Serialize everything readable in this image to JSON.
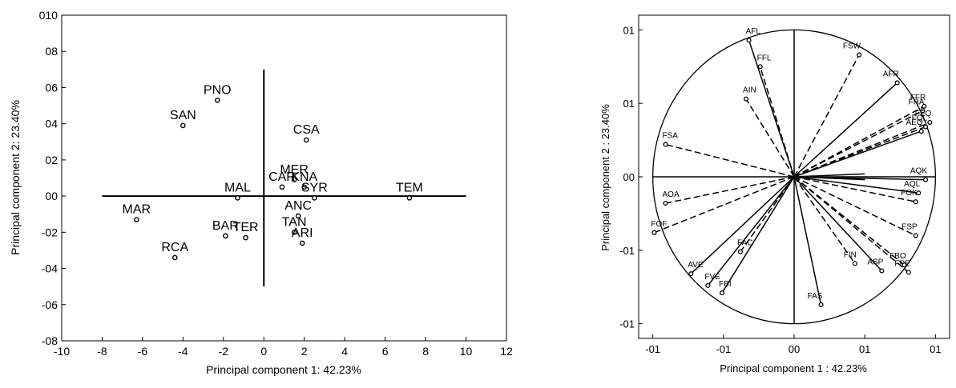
{
  "chart_data": [
    {
      "type": "scatter",
      "xlabel": "Principal component 1: 42.23%",
      "ylabel": "Principal component 2: 23.40%",
      "xlim": [
        -10,
        12
      ],
      "ylim": [
        -8,
        10
      ],
      "xticks": [
        -10,
        -8,
        -6,
        -4,
        -2,
        0,
        2,
        4,
        6,
        8,
        10,
        12
      ],
      "xtick_labels": [
        "-10",
        "-8",
        "-6",
        "-4",
        "-2",
        "0",
        "2",
        "4",
        "6",
        "8",
        "10",
        "12"
      ],
      "yticks": [
        -8,
        -6,
        -4,
        -2,
        0,
        2,
        4,
        6,
        8,
        10
      ],
      "ytick_labels": [
        "-08",
        "-06",
        "-04",
        "-02",
        "00",
        "02",
        "04",
        "06",
        "08",
        "010"
      ],
      "grid": false,
      "axis_lines": {
        "horizontal": [
          -8,
          10
        ],
        "vertical": [
          -5,
          7
        ]
      },
      "points": [
        {
          "label": "PNO",
          "x": -2.3,
          "y": 5.3
        },
        {
          "label": "SAN",
          "x": -4.0,
          "y": 3.9
        },
        {
          "label": "CSA",
          "x": 2.1,
          "y": 3.1
        },
        {
          "label": "MER",
          "x": 1.5,
          "y": 0.9
        },
        {
          "label": "CAR",
          "x": 0.9,
          "y": 0.5
        },
        {
          "label": "KNA",
          "x": 2.0,
          "y": 0.5
        },
        {
          "label": "SYR",
          "x": 2.5,
          "y": -0.1
        },
        {
          "label": "MAL",
          "x": -1.3,
          "y": -0.1
        },
        {
          "label": "TEM",
          "x": 7.2,
          "y": -0.1
        },
        {
          "label": "MAR",
          "x": -6.3,
          "y": -1.3
        },
        {
          "label": "ANC",
          "x": 1.7,
          "y": -1.1
        },
        {
          "label": "BAR",
          "x": -1.9,
          "y": -2.2
        },
        {
          "label": "TER",
          "x": -0.9,
          "y": -2.3
        },
        {
          "label": "TAN",
          "x": 1.5,
          "y": -2.0
        },
        {
          "label": "ARI",
          "x": 1.9,
          "y": -2.6
        },
        {
          "label": "RCA",
          "x": -4.4,
          "y": -3.4
        }
      ]
    },
    {
      "type": "scatter",
      "xlabel": "Principal component 1 : 42.23%",
      "ylabel": "Principal component 2 : 23.40%",
      "xlim": [
        -1.1,
        1.1
      ],
      "ylim": [
        -1.1,
        1.1
      ],
      "xticks": [
        -1,
        -0.5,
        0,
        0.5,
        1
      ],
      "xtick_labels": [
        "-01",
        "-01",
        "00",
        "01",
        "01"
      ],
      "yticks": [
        -1,
        -0.5,
        0,
        0.5,
        1
      ],
      "ytick_labels": [
        "-01",
        "-01",
        "00",
        "01",
        "01"
      ],
      "grid": false,
      "unit_circle": true,
      "vectors": [
        {
          "label": "AFL",
          "x": -0.32,
          "y": 0.93,
          "style": "solid"
        },
        {
          "label": "FFL",
          "x": -0.24,
          "y": 0.75,
          "style": "dashed"
        },
        {
          "label": "FSW",
          "x": 0.46,
          "y": 0.83,
          "style": "dashed"
        },
        {
          "label": "AFR",
          "x": 0.73,
          "y": 0.64,
          "style": "solid"
        },
        {
          "label": "FFR",
          "x": 0.92,
          "y": 0.48,
          "style": "dashed"
        },
        {
          "label": "FHA",
          "x": 0.91,
          "y": 0.45,
          "style": "dashed"
        },
        {
          "label": "FEQ",
          "x": 0.96,
          "y": 0.37,
          "style": "dashed"
        },
        {
          "label": "FQL",
          "x": 0.93,
          "y": 0.34,
          "style": "dashed"
        },
        {
          "label": "AEQ",
          "x": 0.9,
          "y": 0.31,
          "style": "solid"
        },
        {
          "label": "AQK",
          "x": 0.93,
          "y": -0.02,
          "style": "solid"
        },
        {
          "label": "AQL",
          "x": 0.88,
          "y": -0.11,
          "style": "solid"
        },
        {
          "label": "FOK",
          "x": 0.86,
          "y": -0.17,
          "style": "dashed"
        },
        {
          "label": "FSP",
          "x": 0.86,
          "y": -0.4,
          "style": "dashed"
        },
        {
          "label": "FBO",
          "x": 0.78,
          "y": -0.6,
          "style": "dashed"
        },
        {
          "label": "FPE",
          "x": 0.81,
          "y": -0.65,
          "style": "dashed"
        },
        {
          "label": "ASP",
          "x": 0.62,
          "y": -0.64,
          "style": "solid"
        },
        {
          "label": "FIN",
          "x": 0.43,
          "y": -0.59,
          "style": "dashed"
        },
        {
          "label": "FAS",
          "x": 0.19,
          "y": -0.87,
          "style": "solid"
        },
        {
          "label": "AIN",
          "x": -0.34,
          "y": 0.53,
          "style": "dashed"
        },
        {
          "label": "FSA",
          "x": -0.91,
          "y": 0.22,
          "style": "dashed"
        },
        {
          "label": "AOA",
          "x": -0.91,
          "y": -0.18,
          "style": "dashed"
        },
        {
          "label": "FOF",
          "x": -0.99,
          "y": -0.38,
          "style": "dashed"
        },
        {
          "label": "FAC",
          "x": -0.38,
          "y": -0.51,
          "style": "dashed"
        },
        {
          "label": "AVE",
          "x": -0.73,
          "y": -0.66,
          "style": "solid"
        },
        {
          "label": "FVE",
          "x": -0.61,
          "y": -0.74,
          "style": "solid"
        },
        {
          "label": "FBI",
          "x": -0.51,
          "y": -0.79,
          "style": "solid"
        },
        {
          "label": "",
          "x": 0.5,
          "y": 0.02,
          "style": "solid"
        },
        {
          "label": "",
          "x": 0.5,
          "y": -0.02,
          "style": "solid"
        }
      ]
    }
  ]
}
